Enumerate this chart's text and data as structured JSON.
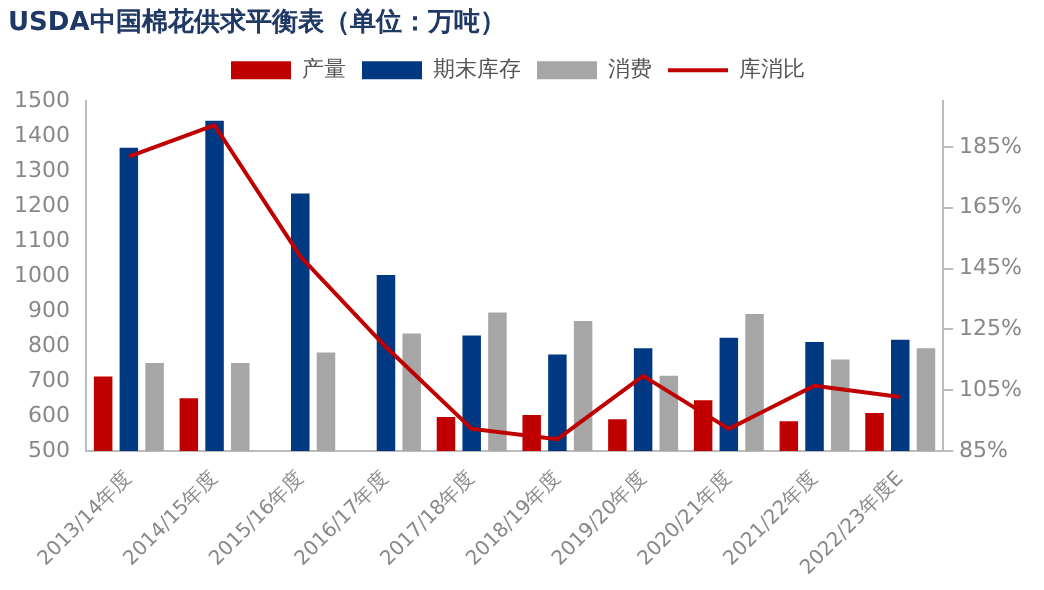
{
  "chart_data": {
    "type": "bar",
    "title": "USDA中国棉花供求平衡表（单位：万吨）",
    "categories": [
      "2013/14年度",
      "2014/15年度",
      "2015/16年度",
      "2016/17年度",
      "2017/18年度",
      "2018/19年度",
      "2019/20年度",
      "2020/21年度",
      "2021/22年度",
      "2022/23年度E"
    ],
    "series": [
      {
        "name": "产量",
        "color": "#c00000",
        "values": [
          713,
          651,
          null,
          null,
          597,
          603,
          591,
          645,
          585,
          609
        ]
      },
      {
        "name": "期末库存",
        "color": "#003882",
        "values": [
          1367,
          1444,
          1236,
          1003,
          830,
          776,
          794,
          824,
          812,
          818
        ]
      },
      {
        "name": "消费",
        "color": "#a6a6a6",
        "values": [
          752,
          752,
          782,
          836,
          896,
          872,
          715,
          892,
          762,
          794
        ]
      },
      {
        "name": "库消比",
        "type": "line",
        "axis": "y2",
        "color": "#c00000",
        "values": [
          181.8,
          192.1,
          149,
          119.2,
          92.3,
          88.9,
          109.7,
          92.3,
          106.5,
          102.8
        ]
      }
    ],
    "ylim": [
      500,
      1500
    ],
    "yticks": [
      500,
      600,
      700,
      800,
      900,
      1000,
      1100,
      1200,
      1300,
      1400,
      1500
    ],
    "y2lim": [
      85,
      200
    ],
    "y2ticks": [
      {
        "value": 85,
        "label": "85%"
      },
      {
        "value": 105,
        "label": "105%"
      },
      {
        "value": 125,
        "label": "125%"
      },
      {
        "value": 145,
        "label": "145%"
      },
      {
        "value": 165,
        "label": "165%"
      },
      {
        "value": 185,
        "label": "185%"
      }
    ],
    "grid": false,
    "legend": "top",
    "marker": "none",
    "line_style": "solid"
  }
}
